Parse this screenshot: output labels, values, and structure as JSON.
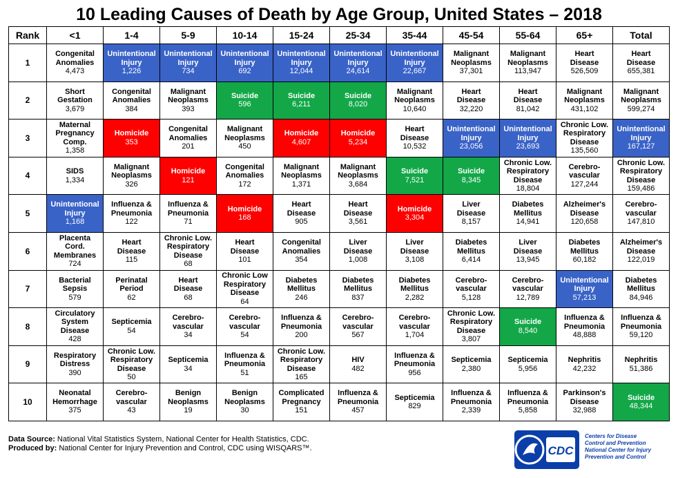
{
  "title": "10 Leading Causes of Death by Age Group, United States – 2018",
  "chart_data": {
    "type": "table",
    "title": "10 Leading Causes of Death by Age Group, United States – 2018",
    "columns": [
      "Rank",
      "<1",
      "1-4",
      "5-9",
      "10-14",
      "15-24",
      "25-34",
      "35-44",
      "45-54",
      "55-64",
      "65+",
      "Total"
    ],
    "colors": {
      "blue": "#3a63c8",
      "green": "#13a748",
      "red": "#ff0000"
    },
    "rows": [
      {
        "rank": "1",
        "cells": [
          {
            "cause": "Congenital\nAnomalies",
            "count": "4,473",
            "color": ""
          },
          {
            "cause": "Unintentional\nInjury",
            "count": "1,226",
            "color": "blue"
          },
          {
            "cause": "Unintentional\nInjury",
            "count": "734",
            "color": "blue"
          },
          {
            "cause": "Unintentional\nInjury",
            "count": "692",
            "color": "blue"
          },
          {
            "cause": "Unintentional\nInjury",
            "count": "12,044",
            "color": "blue"
          },
          {
            "cause": "Unintentional\nInjury",
            "count": "24,614",
            "color": "blue"
          },
          {
            "cause": "Unintentional\nInjury",
            "count": "22,667",
            "color": "blue"
          },
          {
            "cause": "Malignant\nNeoplasms",
            "count": "37,301",
            "color": ""
          },
          {
            "cause": "Malignant\nNeoplasms",
            "count": "113,947",
            "color": ""
          },
          {
            "cause": "Heart\nDisease",
            "count": "526,509",
            "color": ""
          },
          {
            "cause": "Heart\nDisease",
            "count": "655,381",
            "color": ""
          }
        ]
      },
      {
        "rank": "2",
        "cells": [
          {
            "cause": "Short\nGestation",
            "count": "3,679",
            "color": ""
          },
          {
            "cause": "Congenital\nAnomalies",
            "count": "384",
            "color": ""
          },
          {
            "cause": "Malignant\nNeoplasms",
            "count": "393",
            "color": ""
          },
          {
            "cause": "Suicide",
            "count": "596",
            "color": "green"
          },
          {
            "cause": "Suicide",
            "count": "6,211",
            "color": "green"
          },
          {
            "cause": "Suicide",
            "count": "8,020",
            "color": "green"
          },
          {
            "cause": "Malignant\nNeoplasms",
            "count": "10,640",
            "color": ""
          },
          {
            "cause": "Heart\nDisease",
            "count": "32,220",
            "color": ""
          },
          {
            "cause": "Heart\nDisease",
            "count": "81,042",
            "color": ""
          },
          {
            "cause": "Malignant\nNeoplasms",
            "count": "431,102",
            "color": ""
          },
          {
            "cause": "Malignant\nNeoplasms",
            "count": "599,274",
            "color": ""
          }
        ]
      },
      {
        "rank": "3",
        "cells": [
          {
            "cause": "Maternal\nPregnancy\nComp.",
            "count": "1,358",
            "color": ""
          },
          {
            "cause": "Homicide",
            "count": "353",
            "color": "red"
          },
          {
            "cause": "Congenital\nAnomalies",
            "count": "201",
            "color": ""
          },
          {
            "cause": "Malignant\nNeoplasms",
            "count": "450",
            "color": ""
          },
          {
            "cause": "Homicide",
            "count": "4,607",
            "color": "red"
          },
          {
            "cause": "Homicide",
            "count": "5,234",
            "color": "red"
          },
          {
            "cause": "Heart\nDisease",
            "count": "10,532",
            "color": ""
          },
          {
            "cause": "Unintentional\nInjury",
            "count": "23,056",
            "color": "blue"
          },
          {
            "cause": "Unintentional\nInjury",
            "count": "23,693",
            "color": "blue"
          },
          {
            "cause": "Chronic Low.\nRespiratory\nDisease",
            "count": "135,560",
            "color": ""
          },
          {
            "cause": "Unintentional\nInjury",
            "count": "167,127",
            "color": "blue"
          }
        ]
      },
      {
        "rank": "4",
        "cells": [
          {
            "cause": "SIDS",
            "count": "1,334",
            "color": ""
          },
          {
            "cause": "Malignant\nNeoplasms",
            "count": "326",
            "color": ""
          },
          {
            "cause": "Homicide",
            "count": "121",
            "color": "red"
          },
          {
            "cause": "Congenital\nAnomalies",
            "count": "172",
            "color": ""
          },
          {
            "cause": "Malignant\nNeoplasms",
            "count": "1,371",
            "color": ""
          },
          {
            "cause": "Malignant\nNeoplasms",
            "count": "3,684",
            "color": ""
          },
          {
            "cause": "Suicide",
            "count": "7,521",
            "color": "green"
          },
          {
            "cause": "Suicide",
            "count": "8,345",
            "color": "green"
          },
          {
            "cause": "Chronic Low.\nRespiratory\nDisease",
            "count": "18,804",
            "color": ""
          },
          {
            "cause": "Cerebro-\nvascular",
            "count": "127,244",
            "color": ""
          },
          {
            "cause": "Chronic Low.\nRespiratory\nDisease",
            "count": "159,486",
            "color": ""
          }
        ]
      },
      {
        "rank": "5",
        "cells": [
          {
            "cause": "Unintentional\nInjury",
            "count": "1,168",
            "color": "blue"
          },
          {
            "cause": "Influenza &\nPneumonia",
            "count": "122",
            "color": ""
          },
          {
            "cause": "Influenza &\nPneumonia",
            "count": "71",
            "color": ""
          },
          {
            "cause": "Homicide",
            "count": "168",
            "color": "red"
          },
          {
            "cause": "Heart\nDisease",
            "count": "905",
            "color": ""
          },
          {
            "cause": "Heart\nDisease",
            "count": "3,561",
            "color": ""
          },
          {
            "cause": "Homicide",
            "count": "3,304",
            "color": "red"
          },
          {
            "cause": "Liver\nDisease",
            "count": "8,157",
            "color": ""
          },
          {
            "cause": "Diabetes\nMellitus",
            "count": "14,941",
            "color": ""
          },
          {
            "cause": "Alzheimer's\nDisease",
            "count": "120,658",
            "color": ""
          },
          {
            "cause": "Cerebro-\nvascular",
            "count": "147,810",
            "color": ""
          }
        ]
      },
      {
        "rank": "6",
        "cells": [
          {
            "cause": "Placenta\nCord.\nMembranes",
            "count": "724",
            "color": ""
          },
          {
            "cause": "Heart\nDisease",
            "count": "115",
            "color": ""
          },
          {
            "cause": "Chronic Low.\nRespiratory\nDisease",
            "count": "68",
            "color": ""
          },
          {
            "cause": "Heart\nDisease",
            "count": "101",
            "color": ""
          },
          {
            "cause": "Congenital\nAnomalies",
            "count": "354",
            "color": ""
          },
          {
            "cause": "Liver\nDisease",
            "count": "1,008",
            "color": ""
          },
          {
            "cause": "Liver\nDisease",
            "count": "3,108",
            "color": ""
          },
          {
            "cause": "Diabetes\nMellitus",
            "count": "6,414",
            "color": ""
          },
          {
            "cause": "Liver\nDisease",
            "count": "13,945",
            "color": ""
          },
          {
            "cause": "Diabetes\nMellitus",
            "count": "60,182",
            "color": ""
          },
          {
            "cause": "Alzheimer's\nDisease",
            "count": "122,019",
            "color": ""
          }
        ]
      },
      {
        "rank": "7",
        "cells": [
          {
            "cause": "Bacterial\nSepsis",
            "count": "579",
            "color": ""
          },
          {
            "cause": "Perinatal\nPeriod",
            "count": "62",
            "color": ""
          },
          {
            "cause": "Heart\nDisease",
            "count": "68",
            "color": ""
          },
          {
            "cause": "Chronic Low\nRespiratory\nDisease",
            "count": "64",
            "color": ""
          },
          {
            "cause": "Diabetes\nMellitus",
            "count": "246",
            "color": ""
          },
          {
            "cause": "Diabetes\nMellitus",
            "count": "837",
            "color": ""
          },
          {
            "cause": "Diabetes\nMellitus",
            "count": "2,282",
            "color": ""
          },
          {
            "cause": "Cerebro-\nvascular",
            "count": "5,128",
            "color": ""
          },
          {
            "cause": "Cerebro-\nvascular",
            "count": "12,789",
            "color": ""
          },
          {
            "cause": "Unintentional\nInjury",
            "count": "57,213",
            "color": "blue"
          },
          {
            "cause": "Diabetes\nMellitus",
            "count": "84,946",
            "color": ""
          }
        ]
      },
      {
        "rank": "8",
        "cells": [
          {
            "cause": "Circulatory\nSystem\nDisease",
            "count": "428",
            "color": ""
          },
          {
            "cause": "Septicemia",
            "count": "54",
            "color": ""
          },
          {
            "cause": "Cerebro-\nvascular",
            "count": "34",
            "color": ""
          },
          {
            "cause": "Cerebro-\nvascular",
            "count": "54",
            "color": ""
          },
          {
            "cause": "Influenza &\nPneumonia",
            "count": "200",
            "color": ""
          },
          {
            "cause": "Cerebro-\nvascular",
            "count": "567",
            "color": ""
          },
          {
            "cause": "Cerebro-\nvascular",
            "count": "1,704",
            "color": ""
          },
          {
            "cause": "Chronic Low.\nRespiratory\nDisease",
            "count": "3,807",
            "color": ""
          },
          {
            "cause": "Suicide",
            "count": "8,540",
            "color": "green"
          },
          {
            "cause": "Influenza &\nPneumonia",
            "count": "48,888",
            "color": ""
          },
          {
            "cause": "Influenza &\nPneumonia",
            "count": "59,120",
            "color": ""
          }
        ]
      },
      {
        "rank": "9",
        "cells": [
          {
            "cause": "Respiratory\nDistress",
            "count": "390",
            "color": ""
          },
          {
            "cause": "Chronic Low.\nRespiratory\nDisease",
            "count": "50",
            "color": ""
          },
          {
            "cause": "Septicemia",
            "count": "34",
            "color": ""
          },
          {
            "cause": "Influenza &\nPneumonia",
            "count": "51",
            "color": ""
          },
          {
            "cause": "Chronic Low.\nRespiratory\nDisease",
            "count": "165",
            "color": ""
          },
          {
            "cause": "HIV",
            "count": "482",
            "color": ""
          },
          {
            "cause": "Influenza &\nPneumonia",
            "count": "956",
            "color": ""
          },
          {
            "cause": "Septicemia",
            "count": "2,380",
            "color": ""
          },
          {
            "cause": "Septicemia",
            "count": "5,956",
            "color": ""
          },
          {
            "cause": "Nephritis",
            "count": "42,232",
            "color": ""
          },
          {
            "cause": "Nephritis",
            "count": "51,386",
            "color": ""
          }
        ]
      },
      {
        "rank": "10",
        "cells": [
          {
            "cause": "Neonatal\nHemorrhage",
            "count": "375",
            "color": ""
          },
          {
            "cause": "Cerebro-\nvascular",
            "count": "43",
            "color": ""
          },
          {
            "cause": "Benign\nNeoplasms",
            "count": "19",
            "color": ""
          },
          {
            "cause": "Benign\nNeoplasms",
            "count": "30",
            "color": ""
          },
          {
            "cause": "Complicated\nPregnancy",
            "count": "151",
            "color": ""
          },
          {
            "cause": "Influenza &\nPneumonia",
            "count": "457",
            "color": ""
          },
          {
            "cause": "Septicemia",
            "count": "829",
            "color": ""
          },
          {
            "cause": "Influenza &\nPneumonia",
            "count": "2,339",
            "color": ""
          },
          {
            "cause": "Influenza &\nPneumonia",
            "count": "5,858",
            "color": ""
          },
          {
            "cause": "Parkinson's\nDisease",
            "count": "32,988",
            "color": ""
          },
          {
            "cause": "Suicide",
            "count": "48,344",
            "color": "green"
          }
        ]
      }
    ]
  },
  "footer": {
    "source_label": "Data Source:",
    "source_text": " National Vital Statistics System, National Center for Health Statistics, CDC.",
    "produced_label": "Produced by:",
    "produced_text": " National Center for Injury Prevention and Control, CDC using WISQARS™."
  },
  "logo": {
    "badge_text": "CDC",
    "line1": "Centers for Disease",
    "line2": "Control and Prevention",
    "line3": "National Center for Injury",
    "line4": "Prevention and Control"
  }
}
